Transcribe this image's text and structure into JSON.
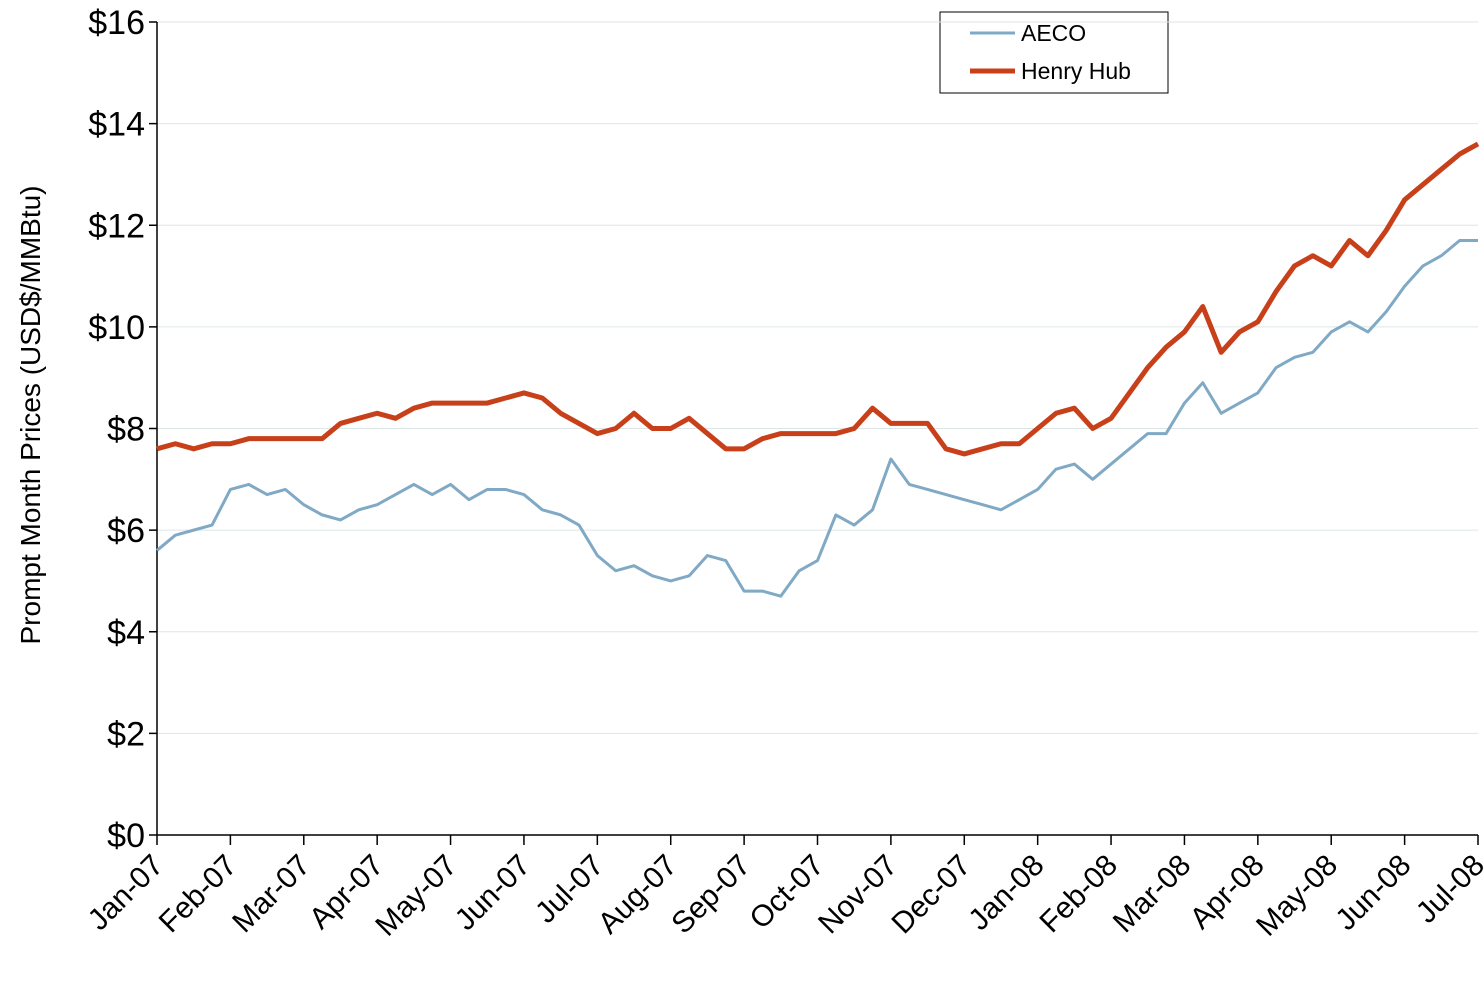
{
  "chart_data": {
    "type": "line",
    "y_label": "Prompt Month Prices (USD$/MMBtu)",
    "categories": [
      "Jan-07",
      null,
      null,
      null,
      "Feb-07",
      null,
      null,
      null,
      "Mar-07",
      null,
      null,
      null,
      "Apr-07",
      null,
      null,
      null,
      "May-07",
      null,
      null,
      null,
      "Jun-07",
      null,
      null,
      null,
      "Jul-07",
      null,
      null,
      null,
      "Aug-07",
      null,
      null,
      null,
      "Sep-07",
      null,
      null,
      null,
      "Oct-07",
      null,
      null,
      null,
      "Nov-07",
      null,
      null,
      null,
      "Dec-07",
      null,
      null,
      null,
      "Jan-08",
      null,
      null,
      null,
      "Feb-08",
      null,
      null,
      null,
      "Mar-08",
      null,
      null,
      null,
      "Apr-08",
      null,
      null,
      null,
      "May-08",
      null,
      null,
      null,
      "Jun-08",
      null,
      null,
      null,
      "Jul-08"
    ],
    "series": [
      {
        "name": "AECO",
        "color": "#7fa9c4",
        "width": 3,
        "values": [
          5.6,
          5.9,
          6.0,
          6.1,
          6.8,
          6.9,
          6.7,
          6.8,
          6.5,
          6.3,
          6.2,
          6.4,
          6.5,
          6.7,
          6.9,
          6.7,
          6.9,
          6.6,
          6.8,
          6.8,
          6.7,
          6.4,
          6.3,
          6.1,
          5.5,
          5.2,
          5.3,
          5.1,
          5.0,
          5.1,
          5.5,
          5.4,
          4.8,
          4.8,
          4.7,
          5.2,
          5.4,
          6.3,
          6.1,
          6.4,
          7.4,
          6.9,
          6.8,
          6.7,
          6.6,
          6.5,
          6.4,
          6.6,
          6.8,
          7.2,
          7.3,
          7.0,
          7.3,
          7.6,
          7.9,
          7.9,
          8.5,
          8.9,
          8.3,
          8.5,
          8.7,
          9.2,
          9.4,
          9.5,
          9.9,
          10.1,
          9.9,
          10.3,
          10.8,
          11.2,
          11.4,
          11.7,
          11.7
        ]
      },
      {
        "name": "Henry Hub",
        "color": "#c8401a",
        "width": 5,
        "values": [
          7.6,
          7.7,
          7.6,
          7.7,
          7.7,
          7.8,
          7.8,
          7.8,
          7.8,
          7.8,
          8.1,
          8.2,
          8.3,
          8.2,
          8.4,
          8.5,
          8.5,
          8.5,
          8.5,
          8.6,
          8.7,
          8.6,
          8.3,
          8.1,
          7.9,
          8.0,
          8.3,
          8.0,
          8.0,
          8.2,
          7.9,
          7.6,
          7.6,
          7.8,
          7.9,
          7.9,
          7.9,
          7.9,
          8.0,
          8.4,
          8.1,
          8.1,
          8.1,
          7.6,
          7.5,
          7.6,
          7.7,
          7.7,
          8.0,
          8.3,
          8.4,
          8.0,
          8.2,
          8.7,
          9.2,
          9.6,
          9.9,
          10.4,
          9.5,
          9.9,
          10.1,
          10.7,
          11.2,
          11.4,
          11.2,
          11.7,
          11.4,
          11.9,
          12.5,
          12.8,
          13.1,
          13.4,
          13.6
        ]
      }
    ],
    "ylim": [
      0,
      16
    ],
    "yticks": [
      {
        "value": 0,
        "label": "$0"
      },
      {
        "value": 2,
        "label": "$2"
      },
      {
        "value": 4,
        "label": "$4"
      },
      {
        "value": 6,
        "label": "$6"
      },
      {
        "value": 8,
        "label": "$8"
      },
      {
        "value": 10,
        "label": "$10"
      },
      {
        "value": 12,
        "label": "$12"
      },
      {
        "value": 14,
        "label": "$14"
      },
      {
        "value": 16,
        "label": "$16"
      }
    ],
    "grid": true
  }
}
